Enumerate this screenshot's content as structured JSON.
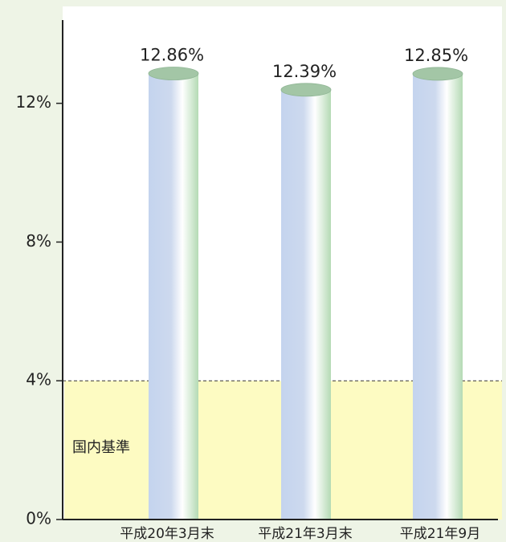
{
  "chart_data": {
    "type": "bar",
    "categories": [
      "平成20年3月末",
      "平成21年3月末",
      "平成21年9月"
    ],
    "values": [
      12.86,
      12.39,
      12.85
    ],
    "value_labels": [
      "12.86%",
      "12.39%",
      "12.85%"
    ],
    "ylim": [
      0,
      14.4
    ],
    "yticks": [
      {
        "value": 0,
        "label": "0%"
      },
      {
        "value": 4,
        "label": "4%"
      },
      {
        "value": 8,
        "label": "8%"
      },
      {
        "value": 12,
        "label": "12%"
      }
    ],
    "reference_line": 4,
    "reference_label": "国内基準"
  }
}
